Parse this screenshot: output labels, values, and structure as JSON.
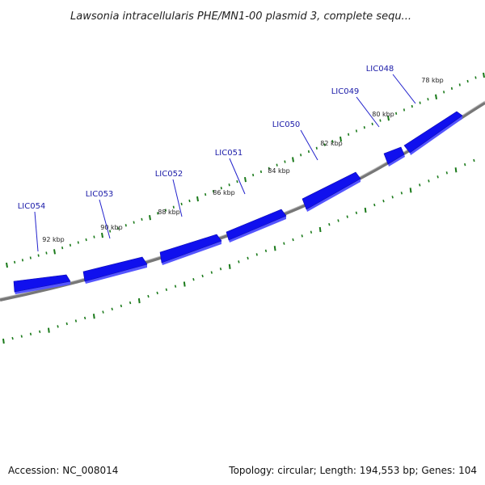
{
  "title": "Lawsonia intracellularis PHE/MN1-00 plasmid 3, complete sequ...",
  "footer": {
    "accession": "Accession: NC_008014",
    "summary": "Topology: circular; Length: 194,553 bp; Genes: 104"
  },
  "colors": {
    "gene_fill": "#1010ee",
    "gene_shade": "#5555ff",
    "backbone": "#808080",
    "tick": "#1a7a1a",
    "label_line": "#2222cc"
  },
  "chart_data": {
    "type": "circular-genome-map",
    "topology": "circular",
    "length_bp": 194553,
    "tick_labels": [
      "78 kbp",
      "80 kbp",
      "82 kbp",
      "84 kbp",
      "86 kbp",
      "88 kbp",
      "90 kbp",
      "92 kbp"
    ],
    "genes": [
      {
        "name": "LIC048",
        "strand": "+"
      },
      {
        "name": "LIC049",
        "strand": "+"
      },
      {
        "name": "LIC050",
        "strand": "+"
      },
      {
        "name": "LIC051",
        "strand": "+"
      },
      {
        "name": "LIC052",
        "strand": "+"
      },
      {
        "name": "LIC053",
        "strand": "+"
      },
      {
        "name": "LIC054",
        "strand": "+"
      }
    ]
  }
}
